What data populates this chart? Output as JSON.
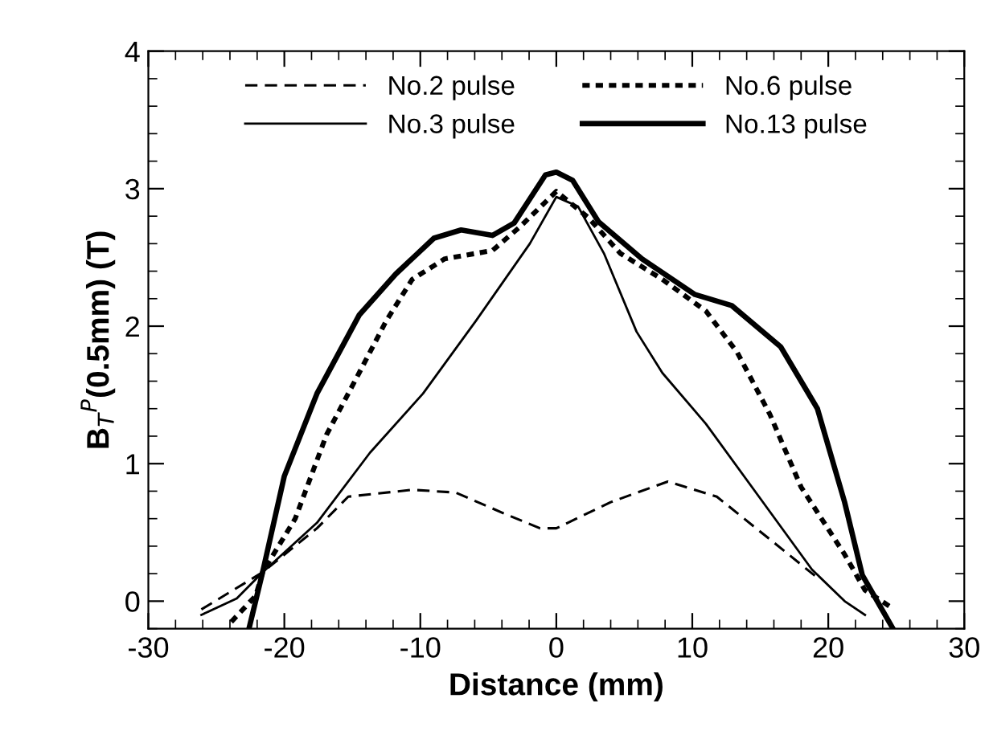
{
  "chart_data": {
    "type": "line",
    "xlabel": "Distance (mm)",
    "ylabel": "B$_{T}$$^{P}$(0.5mm) (T)",
    "xlim": [
      -30,
      30
    ],
    "xticks": [
      -30,
      -20,
      -10,
      0,
      10,
      20,
      30
    ],
    "ylim": [
      -0.2,
      4
    ],
    "yticks": [
      0,
      1,
      2,
      3,
      4
    ],
    "grid": false,
    "legend": "top",
    "marker": "none",
    "series": [
      {
        "name": "No.2 pulse",
        "color": "#000000",
        "line_style": "dashed",
        "x": [
          -26.1,
          -21.6,
          -17.6,
          -15.3,
          -10.6,
          -7.4,
          -3.9,
          -1.2,
          0,
          4,
          8.2,
          11.8,
          15.7,
          19.2
        ],
        "values": [
          -0.06,
          0.21,
          0.53,
          0.76,
          0.81,
          0.79,
          0.64,
          0.53,
          0.53,
          0.72,
          0.87,
          0.76,
          0.45,
          0.17
        ]
      },
      {
        "name": "No.3 pulse",
        "color": "#000000",
        "line_style": "solid",
        "x": [
          -26.1,
          -23.5,
          -21.6,
          -17.6,
          -13.7,
          -9.8,
          -5.9,
          -1.95,
          0,
          1.6,
          3.5,
          5.9,
          7.8,
          11,
          14.9,
          18.8,
          21.2,
          22.7
        ],
        "values": [
          -0.1,
          0.02,
          0.21,
          0.57,
          1.08,
          1.51,
          2.04,
          2.6,
          2.94,
          2.87,
          2.53,
          1.96,
          1.66,
          1.29,
          0.76,
          0.23,
          0.0,
          -0.1
        ]
      },
      {
        "name": "No.6 pulse",
        "color": "#000000",
        "line_style": "dotted",
        "x": [
          -23.9,
          -22.1,
          -21.6,
          -19.2,
          -16.9,
          -14.5,
          -12.5,
          -10.6,
          -8.2,
          -4.7,
          -2.7,
          0,
          2.35,
          4.7,
          7.8,
          11,
          13.3,
          15.7,
          18,
          21.2,
          22.7,
          24.7
        ],
        "values": [
          -0.15,
          0.04,
          0.21,
          0.6,
          1.21,
          1.66,
          2.04,
          2.34,
          2.49,
          2.55,
          2.72,
          2.98,
          2.79,
          2.53,
          2.34,
          2.11,
          1.81,
          1.36,
          0.83,
          0.34,
          0.08,
          -0.05
        ]
      },
      {
        "name": "No.13 pulse",
        "color": "#000000",
        "line_style": "solid",
        "x": [
          -22.6,
          -21.6,
          -20,
          -17.6,
          -14.5,
          -11.8,
          -9,
          -7,
          -4.7,
          -3.1,
          -0.8,
          0,
          1.2,
          3.1,
          6.3,
          10.2,
          12.9,
          16.5,
          19.2,
          21.2,
          22.5,
          24.7
        ],
        "values": [
          -0.2,
          0.21,
          0.91,
          1.51,
          2.08,
          2.38,
          2.64,
          2.7,
          2.66,
          2.75,
          3.1,
          3.12,
          3.06,
          2.76,
          2.49,
          2.23,
          2.15,
          1.85,
          1.4,
          0.72,
          0.19,
          -0.19
        ]
      }
    ]
  }
}
